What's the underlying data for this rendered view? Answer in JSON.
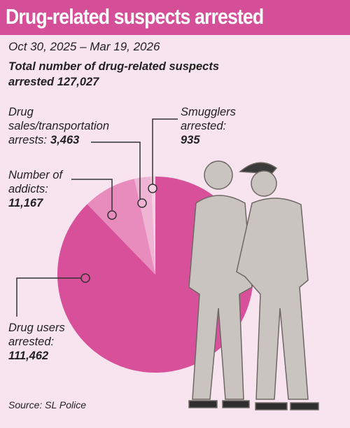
{
  "chart_data": {
    "type": "pie",
    "title": "Drug-related suspects arrested",
    "date_range": "Oct  30, 2025 – Mar 19, 2026",
    "subtitle": "Total number of drug-related suspects arrested  127,027",
    "categories": [
      "Drug users arrested:",
      "Number of addicts:",
      "Drug sales/transportation arrests:",
      "Smugglers arrested:"
    ],
    "values": [
      111462,
      11167,
      3463,
      935
    ],
    "value_labels": [
      "111,462",
      "11,167",
      "3,463",
      "935"
    ],
    "colors": [
      "#d9509a",
      "#e78cbd",
      "#efb3d4",
      "#f5d0e3"
    ],
    "source": "Source: SL Police"
  }
}
